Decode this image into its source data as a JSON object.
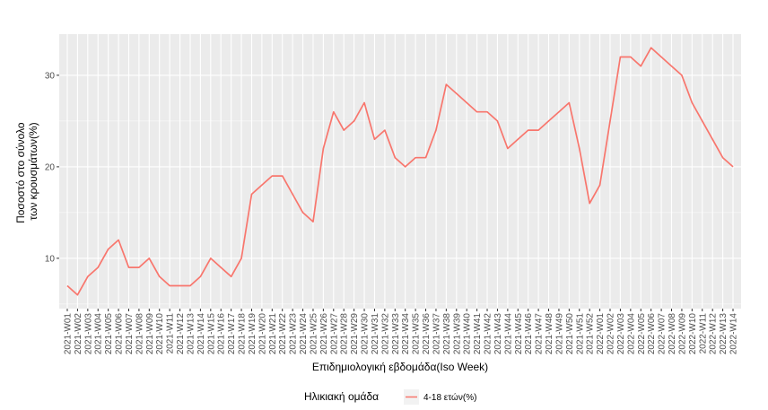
{
  "chart_data": {
    "type": "line",
    "xlabel": "Επιδημιολογική εβδομάδα(Iso Week)",
    "ylabel_lines": [
      "Ποσοστό στο σύνολο",
      "των κρουσμάτων(%)"
    ],
    "ylim": [
      4.5,
      34.5
    ],
    "yticks": [
      10,
      20,
      30
    ],
    "grid": true,
    "legend_position": "bottom",
    "legend_title": "Ηλικιακή ομάδα",
    "categories": [
      "2021-W01",
      "2021-W02",
      "2021-W03",
      "2021-W04",
      "2021-W05",
      "2021-W06",
      "2021-W07",
      "2021-W08",
      "2021-W09",
      "2021-W10",
      "2021-W11",
      "2021-W12",
      "2021-W13",
      "2021-W14",
      "2021-W15",
      "2021-W16",
      "2021-W17",
      "2021-W18",
      "2021-W19",
      "2021-W20",
      "2021-W21",
      "2021-W22",
      "2021-W23",
      "2021-W24",
      "2021-W25",
      "2021-W26",
      "2021-W27",
      "2021-W28",
      "2021-W29",
      "2021-W30",
      "2021-W31",
      "2021-W32",
      "2021-W33",
      "2021-W34",
      "2021-W35",
      "2021-W36",
      "2021-W37",
      "2021-W38",
      "2021-W39",
      "2021-W40",
      "2021-W41",
      "2021-W42",
      "2021-W43",
      "2021-W44",
      "2021-W45",
      "2021-W46",
      "2021-W47",
      "2021-W48",
      "2021-W49",
      "2021-W50",
      "2021-W51",
      "2021-W52",
      "2022-W01",
      "2022-W02",
      "2022-W03",
      "2022-W04",
      "2022-W05",
      "2022-W06",
      "2022-W07",
      "2022-W08",
      "2022-W09",
      "2022-W10",
      "2022-W11",
      "2022-W12",
      "2022-W13",
      "2022-W14"
    ],
    "series": [
      {
        "name": "4-18 ετών(%)",
        "color": "#F8766D",
        "values": [
          7,
          6,
          8,
          9,
          11,
          12,
          9,
          9,
          10,
          8,
          7,
          7,
          7,
          8,
          10,
          9,
          8,
          10,
          17,
          18,
          19,
          19,
          17,
          15,
          14,
          22,
          26,
          24,
          25,
          27,
          23,
          24,
          21,
          20,
          21,
          21,
          24,
          29,
          28,
          27,
          26,
          26,
          25,
          22,
          23,
          24,
          24,
          25,
          26,
          27,
          22,
          16,
          18,
          25,
          32,
          32,
          31,
          33,
          32,
          31,
          30,
          27,
          25,
          23,
          21,
          20
        ]
      }
    ]
  }
}
